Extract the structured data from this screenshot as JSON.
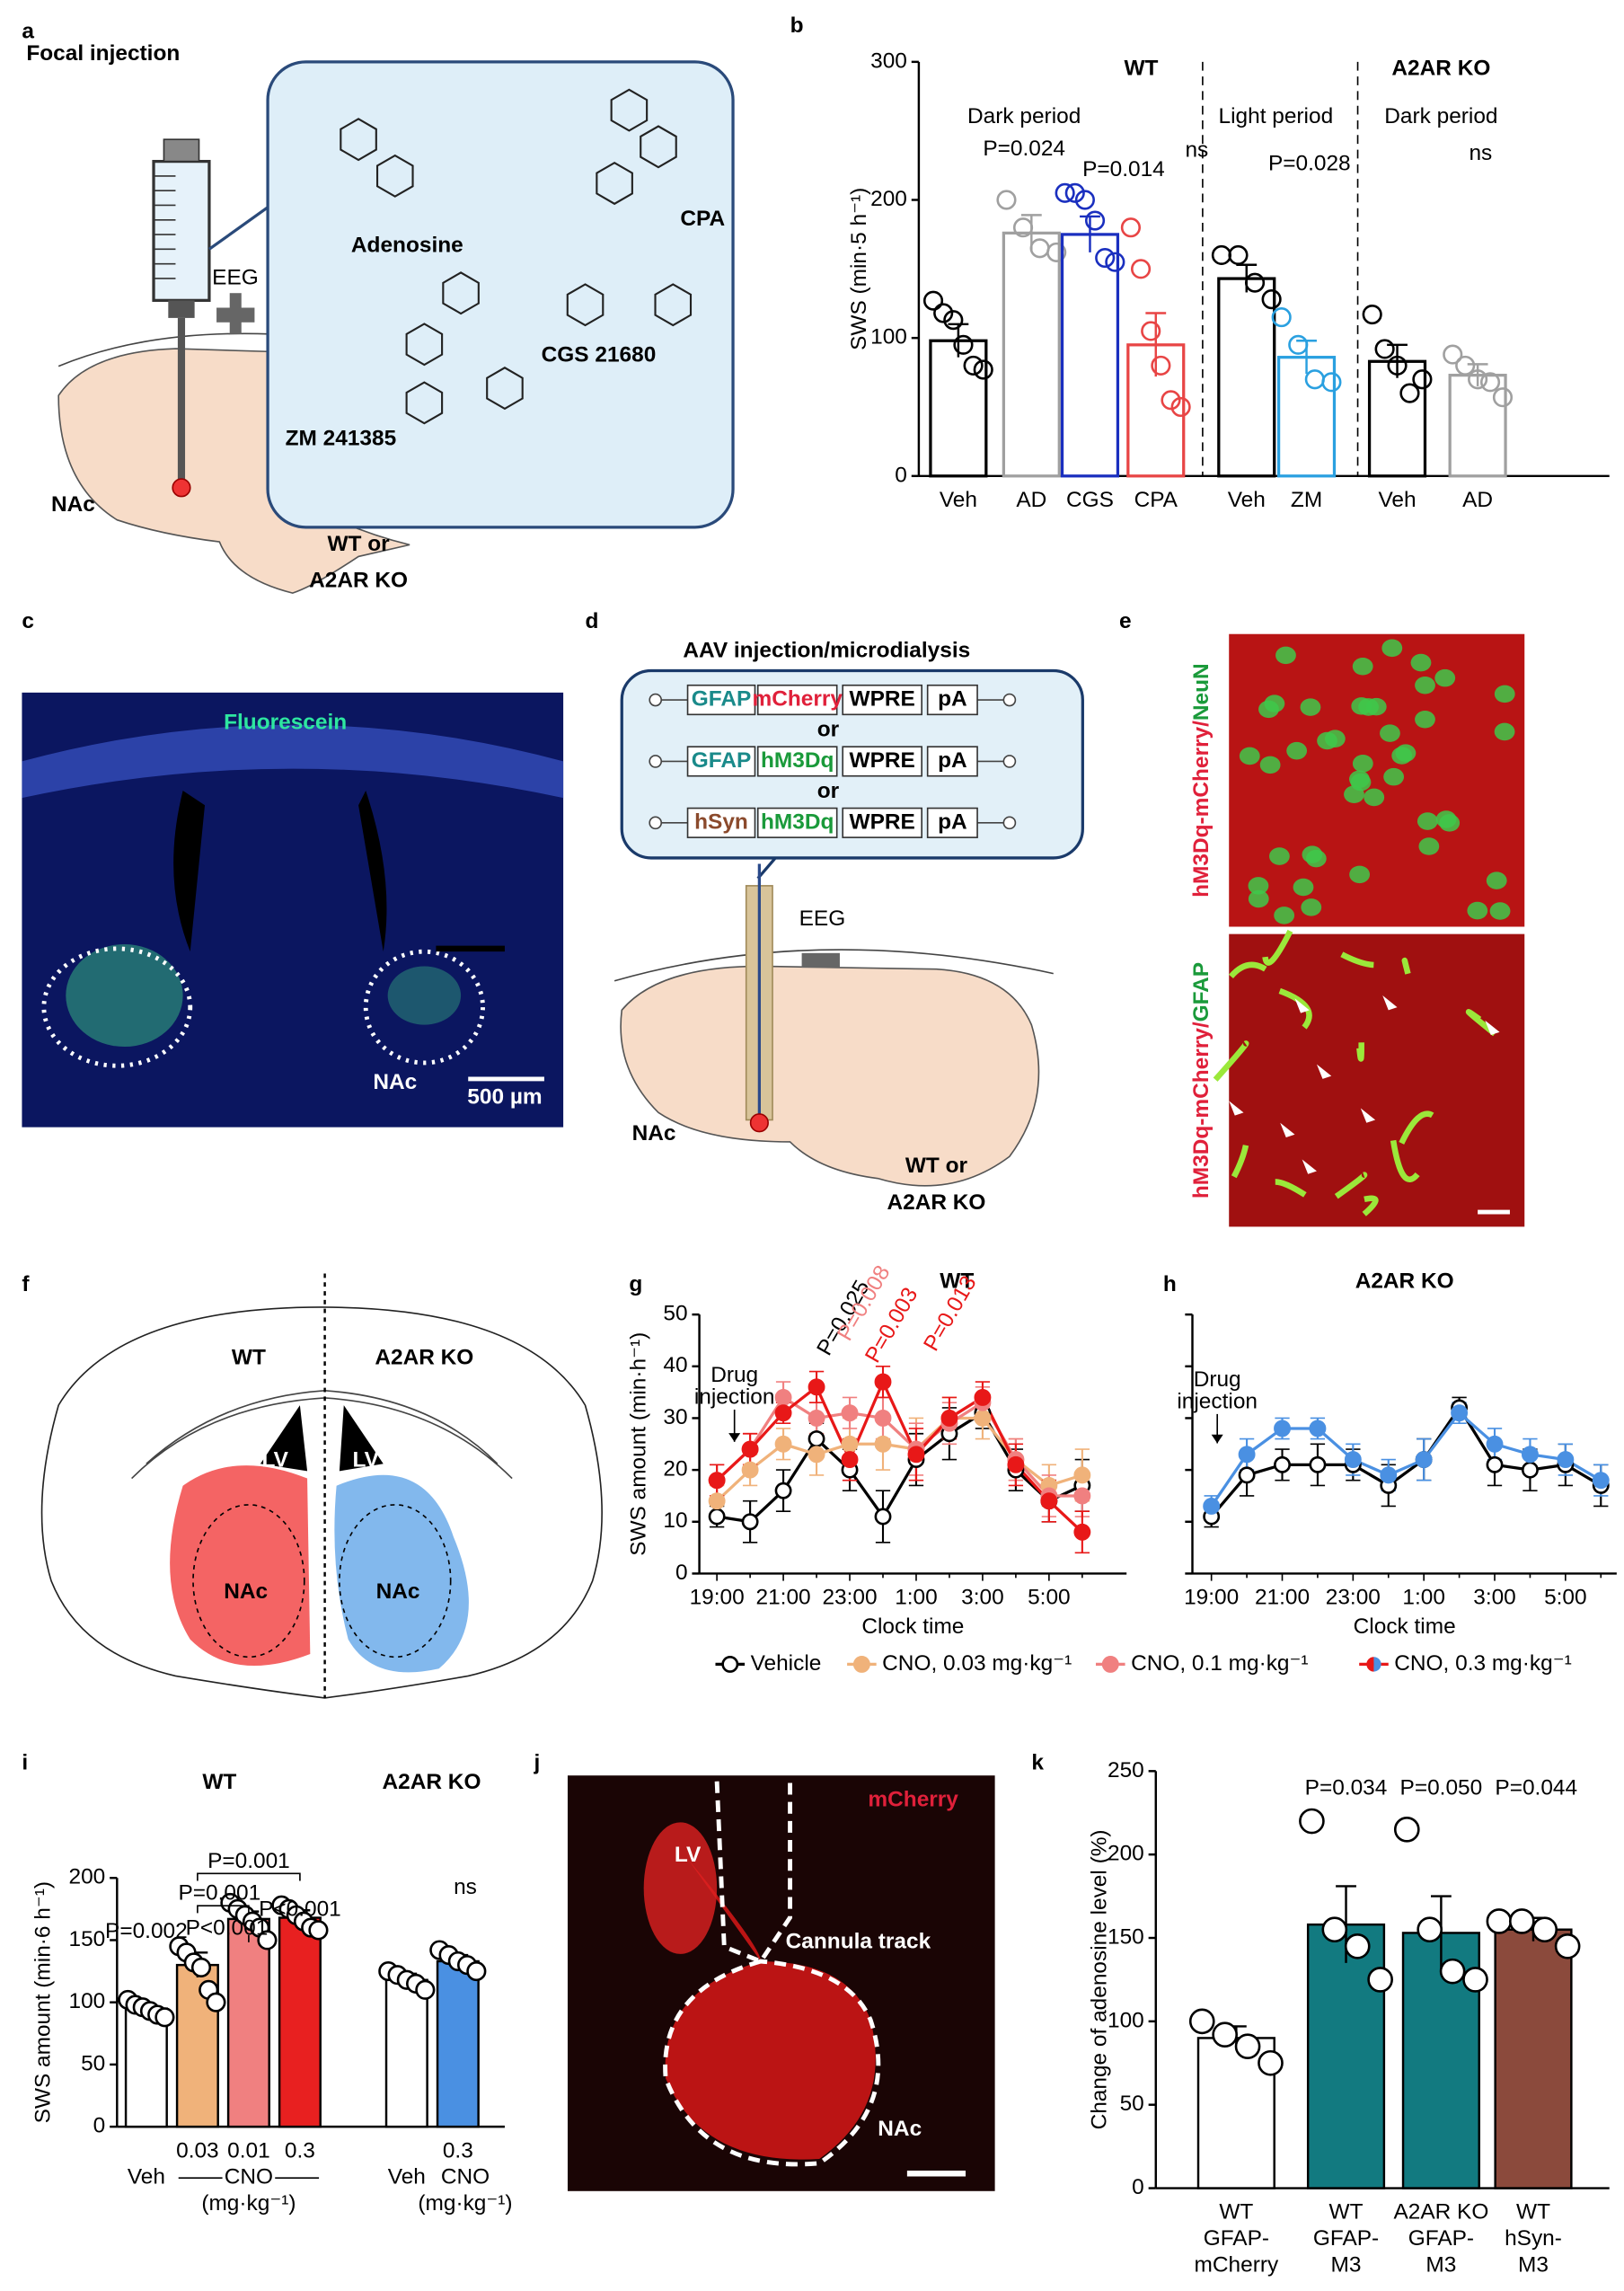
{
  "panel_labels": [
    "a",
    "b",
    "c",
    "d",
    "e",
    "f",
    "g",
    "h",
    "i",
    "j",
    "k"
  ],
  "panel_a": {
    "title": "Focal injection",
    "compounds": [
      "Adenosine",
      "CPA",
      "CGS 21680",
      "ZM 241385"
    ],
    "eeg": "EEG",
    "region": "NAc",
    "genotype": [
      "WT or",
      "A2AR KO"
    ]
  },
  "panel_c": {
    "stain": "Fluorescein",
    "region": "NAc",
    "scale": "500 µm"
  },
  "panel_d": {
    "title": "AAV injection/microdialysis",
    "constructs": [
      [
        "GFAP",
        "mCherry",
        "WPRE",
        "pA"
      ],
      [
        "GFAP",
        "hM3Dq",
        "WPRE",
        "pA"
      ],
      [
        "hSyn",
        "hM3Dq",
        "WPRE",
        "pA"
      ]
    ],
    "separator": "or",
    "eeg": "EEG",
    "region": "NAc",
    "genotype": [
      "WT or",
      "A2AR KO"
    ]
  },
  "panel_e": {
    "labels": [
      [
        "hM3Dq-mCherry/",
        "NeuN"
      ],
      [
        "hM3Dq-mCherry/",
        "GFAP"
      ]
    ]
  },
  "panel_f": {
    "groups": [
      "WT",
      "A2AR KO"
    ],
    "ventricle": "LV",
    "region": "NAc"
  },
  "panel_j": {
    "stain": "mCherry",
    "ventricle": "LV",
    "track": "Cannula track",
    "region": "NAc"
  },
  "chart_data": [
    {
      "type": "bar",
      "ylabel": "SWS (min·5 h⁻¹)",
      "outline_bars": true,
      "categories": [
        "Veh",
        "AD",
        "CGS",
        "CPA",
        "Veh",
        "ZM",
        "Veh",
        "AD"
      ],
      "values": [
        98,
        176,
        175,
        95,
        143,
        86,
        83,
        73
      ],
      "errors": [
        12,
        13,
        13,
        23,
        10,
        12,
        12,
        8
      ],
      "colors": [
        "#000000",
        "#a0a0a0",
        "#1a2fbf",
        "#e84545",
        "#000000",
        "#2aa0e0",
        "#000000",
        "#a0a0a0"
      ],
      "points": [
        [
          127,
          118,
          113,
          95,
          80,
          77
        ],
        [
          200,
          180,
          165,
          162
        ],
        [
          205,
          205,
          200,
          185,
          158,
          155
        ],
        [
          180,
          150,
          105,
          80,
          55,
          50
        ],
        [
          160,
          160,
          140,
          128
        ],
        [
          115,
          95,
          70,
          68
        ],
        [
          117,
          92,
          80,
          60,
          70
        ],
        [
          88,
          80,
          70,
          68,
          57
        ]
      ],
      "ylim": [
        0,
        300
      ],
      "yticks": [
        0,
        100,
        200,
        300
      ],
      "annotations": [
        "WT",
        "Dark period",
        "Light period",
        "A2AR KO",
        "Dark period",
        "P=0.024",
        "P=0.014",
        "ns",
        "P=0.028",
        "ns"
      ]
    },
    {
      "type": "line",
      "title": "WT",
      "xlabel": "Clock time",
      "ylabel": "SWS amount (min·h⁻¹)",
      "categories": [
        "19:00",
        null,
        "21:00",
        null,
        "23:00",
        null,
        "1:00",
        null,
        "3:00",
        null,
        "5:00",
        null
      ],
      "ylim": [
        0,
        50
      ],
      "yticks": [
        0,
        10,
        20,
        30,
        40,
        50
      ],
      "series": [
        {
          "name": "Vehicle",
          "color": "#000000",
          "values": [
            11,
            10,
            16,
            26,
            20,
            11,
            22,
            27,
            31,
            20,
            14,
            17
          ],
          "errors": [
            2,
            4,
            4,
            3,
            4,
            5,
            5,
            5,
            3,
            4,
            4,
            5
          ]
        },
        {
          "name": "CNO, 0.03 mg·kg⁻¹",
          "color": "#f0b27a",
          "values": [
            14,
            20,
            25,
            23,
            25,
            25,
            24,
            30,
            30,
            22,
            17,
            19
          ],
          "errors": [
            3,
            3,
            3,
            4,
            5,
            5,
            6,
            4,
            4,
            4,
            4,
            5
          ]
        },
        {
          "name": "CNO, 0.1 mg·kg⁻¹",
          "color": "#f08080",
          "values": [
            18,
            24,
            34,
            30,
            31,
            30,
            24,
            29,
            33,
            22,
            15,
            15
          ],
          "errors": [
            3,
            3,
            3,
            3,
            3,
            4,
            5,
            4,
            3,
            4,
            4,
            4
          ]
        },
        {
          "name": "CNO, 0.3 mg·kg⁻¹",
          "color": "#e81818",
          "values": [
            18,
            24,
            31,
            36,
            22,
            37,
            23,
            30,
            34,
            21,
            14,
            8
          ],
          "errors": [
            3,
            3,
            2,
            3,
            4,
            3,
            5,
            4,
            3,
            4,
            4,
            4
          ]
        }
      ],
      "annotations": [
        "Drug",
        "injection",
        "P=0.025",
        "P=0.008",
        "P=0.003",
        "P=0.013"
      ]
    },
    {
      "type": "line",
      "title": "A2AR KO",
      "xlabel": "Clock time",
      "categories": [
        "19:00",
        null,
        "21:00",
        null,
        "23:00",
        null,
        "1:00",
        null,
        "3:00",
        null,
        "5:00",
        null
      ],
      "ylim": [
        0,
        50
      ],
      "yticks": [
        0,
        10,
        20,
        30,
        40,
        50
      ],
      "series": [
        {
          "color": "#000000",
          "values": [
            11,
            19,
            21,
            21,
            21,
            17,
            22,
            32,
            21,
            20,
            21,
            17
          ],
          "errors": [
            2,
            4,
            3,
            4,
            3,
            4,
            4,
            2,
            4,
            4,
            4,
            4
          ]
        },
        {
          "color": "#4a90e2",
          "values": [
            13,
            23,
            28,
            28,
            22,
            19,
            22,
            31,
            25,
            23,
            22,
            18
          ],
          "errors": [
            2,
            3,
            2,
            2,
            3,
            3,
            4,
            2,
            3,
            3,
            3,
            3
          ]
        }
      ],
      "annotations": [
        "Drug",
        "injection"
      ]
    },
    {
      "type": "bar",
      "titles": [
        "WT",
        "A2AR KO"
      ],
      "ylabel": "SWS amount (min·6 h⁻¹)",
      "outline_bars": false,
      "categories": [
        "Veh",
        "0.03",
        "0.01",
        "0.3",
        "Veh",
        "0.3"
      ],
      "values": [
        95,
        130,
        167,
        168,
        118,
        133
      ],
      "errors": [
        3,
        10,
        6,
        6,
        5,
        5
      ],
      "colors": [
        "#ffffff",
        "#f0b27a",
        "#f08080",
        "#e82020",
        "#ffffff",
        "#4a90e2"
      ],
      "points": [
        [
          102,
          98,
          96,
          93,
          90,
          88
        ],
        [
          145,
          140,
          132,
          128,
          110,
          100
        ],
        [
          180,
          175,
          170,
          165,
          160,
          150
        ],
        [
          178,
          175,
          170,
          165,
          160,
          158
        ],
        [
          125,
          122,
          118,
          115,
          110
        ],
        [
          142,
          138,
          133,
          130,
          125
        ]
      ],
      "ylim": [
        0,
        200
      ],
      "yticks": [
        0,
        50,
        100,
        150,
        200
      ],
      "group_labels": [
        {
          "label": "CNO",
          "unit": "(mg·kg⁻¹)"
        },
        {
          "label": "CNO",
          "unit": "(mg·kg⁻¹)"
        }
      ],
      "annotations": [
        "P=0.001",
        "P=0.001",
        "P<0.001",
        "P<0.001",
        "P=0.002",
        "ns"
      ]
    },
    {
      "type": "bar",
      "ylabel": "Change of adenosine level (%)",
      "outline_bars": false,
      "categories": [
        [
          "WT",
          "GFAP-",
          "mCherry"
        ],
        [
          "WT",
          "GFAP-",
          "M3"
        ],
        [
          "A2AR KO",
          "GFAP-",
          "M3"
        ],
        [
          "WT",
          "hSyn-",
          "M3"
        ]
      ],
      "values": [
        90,
        158,
        153,
        155
      ],
      "errors": [
        7,
        23,
        22,
        7
      ],
      "colors": [
        "#ffffff",
        "#127a80",
        "#127a80",
        "#8b4a3c"
      ],
      "points": [
        [
          100,
          92,
          85,
          75
        ],
        [
          220,
          155,
          145,
          125
        ],
        [
          215,
          155,
          130,
          125
        ],
        [
          160,
          160,
          155,
          145
        ]
      ],
      "ylim": [
        0,
        250
      ],
      "yticks": [
        0,
        50,
        100,
        150,
        200,
        250
      ],
      "annotations": [
        "P=0.034",
        "P=0.050",
        "P=0.044"
      ]
    }
  ]
}
